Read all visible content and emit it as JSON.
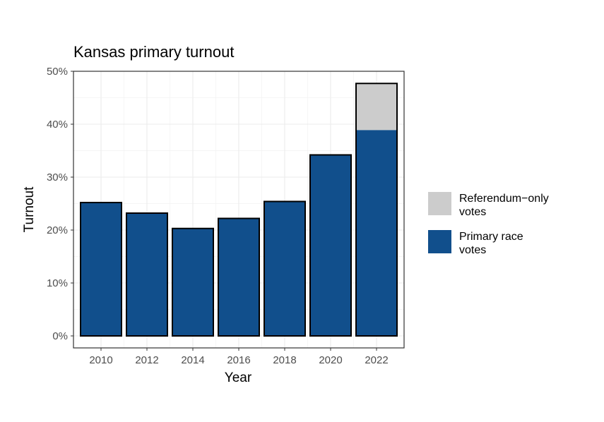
{
  "chart_data": {
    "type": "bar",
    "stacked": true,
    "title": "Kansas primary turnout",
    "xlabel": "Year",
    "ylabel": "Turnout",
    "categories": [
      "2010",
      "2012",
      "2014",
      "2016",
      "2018",
      "2020",
      "2022"
    ],
    "series": [
      {
        "name": "Primary race votes",
        "color": "#114f8c",
        "values": [
          25.2,
          23.2,
          20.3,
          22.2,
          25.4,
          34.2,
          38.9
        ]
      },
      {
        "name": "Referendum-only votes",
        "color": "#cccccc",
        "values": [
          0,
          0,
          0,
          0,
          0,
          0,
          8.8
        ]
      }
    ],
    "ylim": [
      0,
      50
    ],
    "yticks": [
      0,
      10,
      20,
      30,
      40,
      50
    ],
    "ytick_labels": [
      "0%",
      "10%",
      "20%",
      "30%",
      "40%",
      "50%"
    ],
    "grid": true,
    "legend_position": "right",
    "legend": [
      {
        "lines": [
          "Referendum−only",
          "votes"
        ],
        "color": "#cccccc"
      },
      {
        "lines": [
          "Primary race",
          "votes"
        ],
        "color": "#114f8c"
      }
    ]
  }
}
